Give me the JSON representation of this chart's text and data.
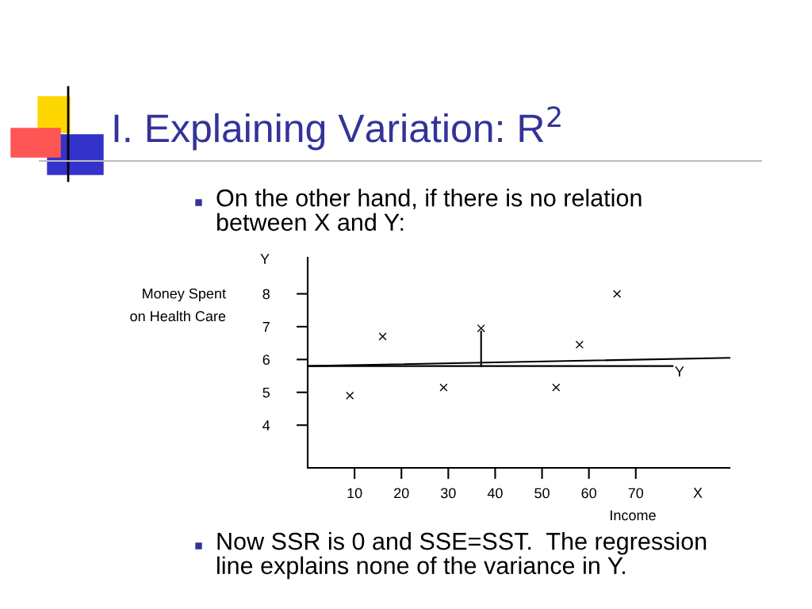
{
  "chart_data": {
    "type": "scatter",
    "title": "I. Explaining Variation: R$^{2}$",
    "xlabel": "Income",
    "ylabel": "Money Spent\non Health Care",
    "x": [
      9,
      16,
      29,
      37,
      53,
      58,
      66
    ],
    "series": [
      {
        "color": "#000000",
        "marker": "cross",
        "values": [
          4.9,
          6.7,
          5.15,
          6.95,
          5.15,
          6.45,
          8.0
        ]
      },
      {
        "type": "line",
        "color": "#000000",
        "x": [
          0,
          90
        ],
        "values": [
          5.8,
          6.05
        ]
      },
      {
        "type": "line",
        "color": "#000000",
        "x": [
          37,
          37
        ],
        "values": [
          6.85,
          5.8
        ]
      }
    ],
    "ref_lines": [
      {
        "axis": "y",
        "value": 5.8,
        "label": "Y",
        "color": "#000000"
      }
    ],
    "xlim": [
      0,
      90
    ],
    "ylim": [
      2.7,
      9.1
    ],
    "xticks": [
      10,
      20,
      30,
      40,
      50,
      60,
      70
    ],
    "yticks": [
      4,
      5,
      6,
      7,
      8
    ],
    "grid": false,
    "annotations": [
      "On the other hand, if there is no relation\nbetween X and Y:",
      "Now SSR is 0 and SSE=SST.  The regression\nline explains none of the variance in Y.",
      "Y",
      "X"
    ]
  }
}
